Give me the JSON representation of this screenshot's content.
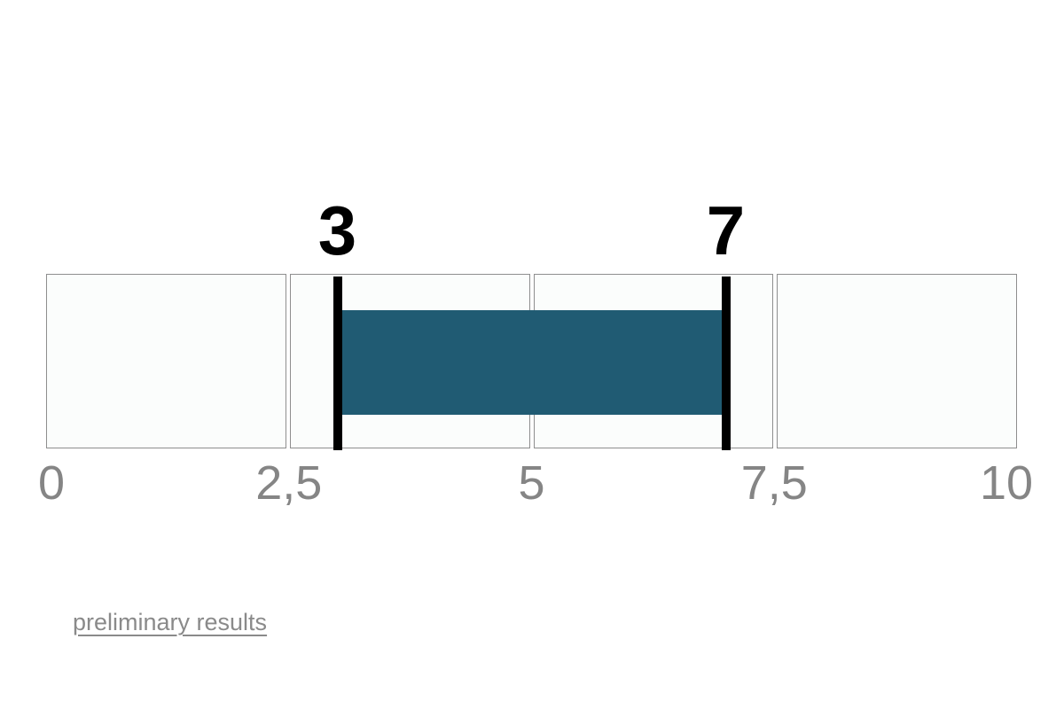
{
  "background_color": "#ffffff",
  "chart_data": {
    "type": "bar",
    "subtype": "horizontal-range-bullet",
    "axis": {
      "min": 0,
      "max": 10,
      "tick_values": [
        0,
        2.5,
        5,
        7.5,
        10
      ],
      "tick_labels": [
        "0",
        "2,5",
        "5",
        "7,5",
        "10"
      ],
      "decimal_separator": ","
    },
    "segments": [
      {
        "from": 0,
        "to": 2.5
      },
      {
        "from": 2.5,
        "to": 5
      },
      {
        "from": 5,
        "to": 7.5
      },
      {
        "from": 7.5,
        "to": 10
      }
    ],
    "range": {
      "start": 3,
      "end": 7,
      "start_label": "3",
      "end_label": "7"
    },
    "grid": false,
    "legend": null,
    "colors": {
      "bar": "#205b73",
      "marker": "#000000",
      "segment_fill": "#fbfdfc",
      "segment_border": "#8e8e8e",
      "tick_label": "#858585",
      "value_label": "#000000",
      "link": "#8a8a8a"
    }
  },
  "footer": {
    "link_label": "preliminary results"
  }
}
